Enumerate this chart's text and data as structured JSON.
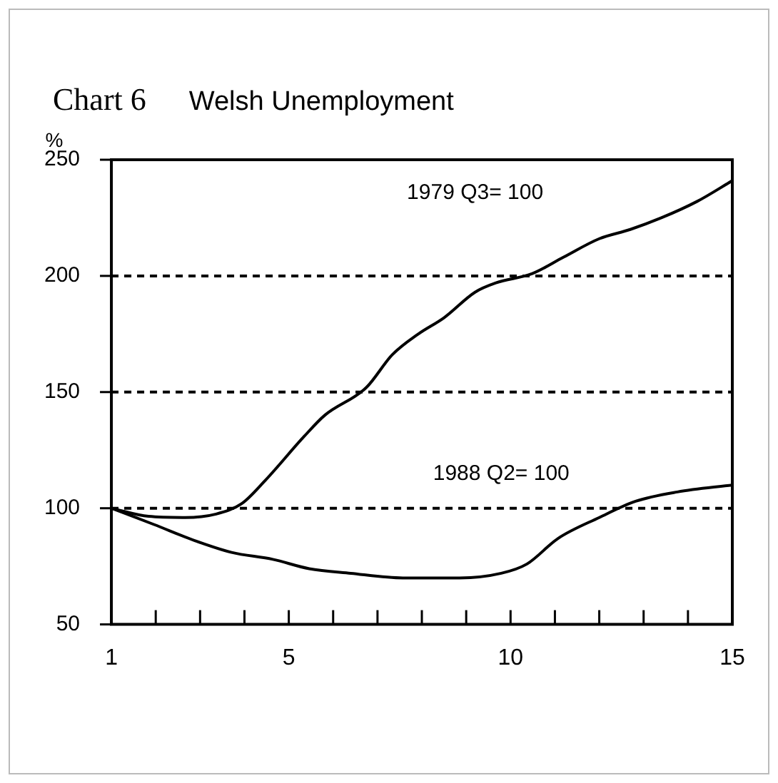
{
  "chart_data": {
    "type": "line",
    "title": "Chart 6",
    "subtitle": "Welsh Unemployment",
    "ylabel": "%",
    "xlim": [
      1,
      15
    ],
    "xticks": [
      1,
      {
        "value": 2,
        "label": null
      },
      {
        "value": 3,
        "label": null
      },
      {
        "value": 4,
        "label": null
      },
      5,
      {
        "value": 6,
        "label": null
      },
      {
        "value": 7,
        "label": null
      },
      {
        "value": 8,
        "label": null
      },
      {
        "value": 9,
        "label": null
      },
      10,
      {
        "value": 11,
        "label": null
      },
      {
        "value": 12,
        "label": null
      },
      {
        "value": 13,
        "label": null
      },
      {
        "value": 14,
        "label": null
      },
      15
    ],
    "ylim": [
      50,
      250
    ],
    "yticks": [
      50,
      100,
      150,
      200,
      250
    ],
    "grid": "y",
    "legend": false,
    "marker": "none",
    "series": [
      {
        "name": "1979 Q3= 100",
        "color": "#000000",
        "x": [
          1,
          1.84,
          2.66,
          3.36,
          3.94,
          4.47,
          5.35,
          5.81,
          6.75,
          7.33,
          7.92,
          8.5,
          9.2,
          9.67,
          10.49,
          11.19,
          12.0,
          12.7,
          13.4,
          14.2,
          15
        ],
        "values": [
          100,
          96.5,
          96,
          97.5,
          102,
          112,
          131,
          140,
          152,
          166,
          175,
          182,
          193,
          197,
          201,
          208,
          216,
          220,
          225,
          232,
          241
        ]
      },
      {
        "name": "1988 Q2= 100",
        "color": "#000000",
        "x": [
          1,
          1.96,
          2.89,
          3.71,
          4.64,
          5.46,
          6.4,
          7.57,
          8.85,
          9.79,
          10.37,
          11.07,
          12.0,
          12.82,
          13.76,
          15
        ],
        "values": [
          100,
          93,
          86,
          81,
          78,
          74,
          72,
          70,
          70,
          72,
          76,
          87,
          96,
          103,
          107,
          110
        ]
      }
    ]
  }
}
